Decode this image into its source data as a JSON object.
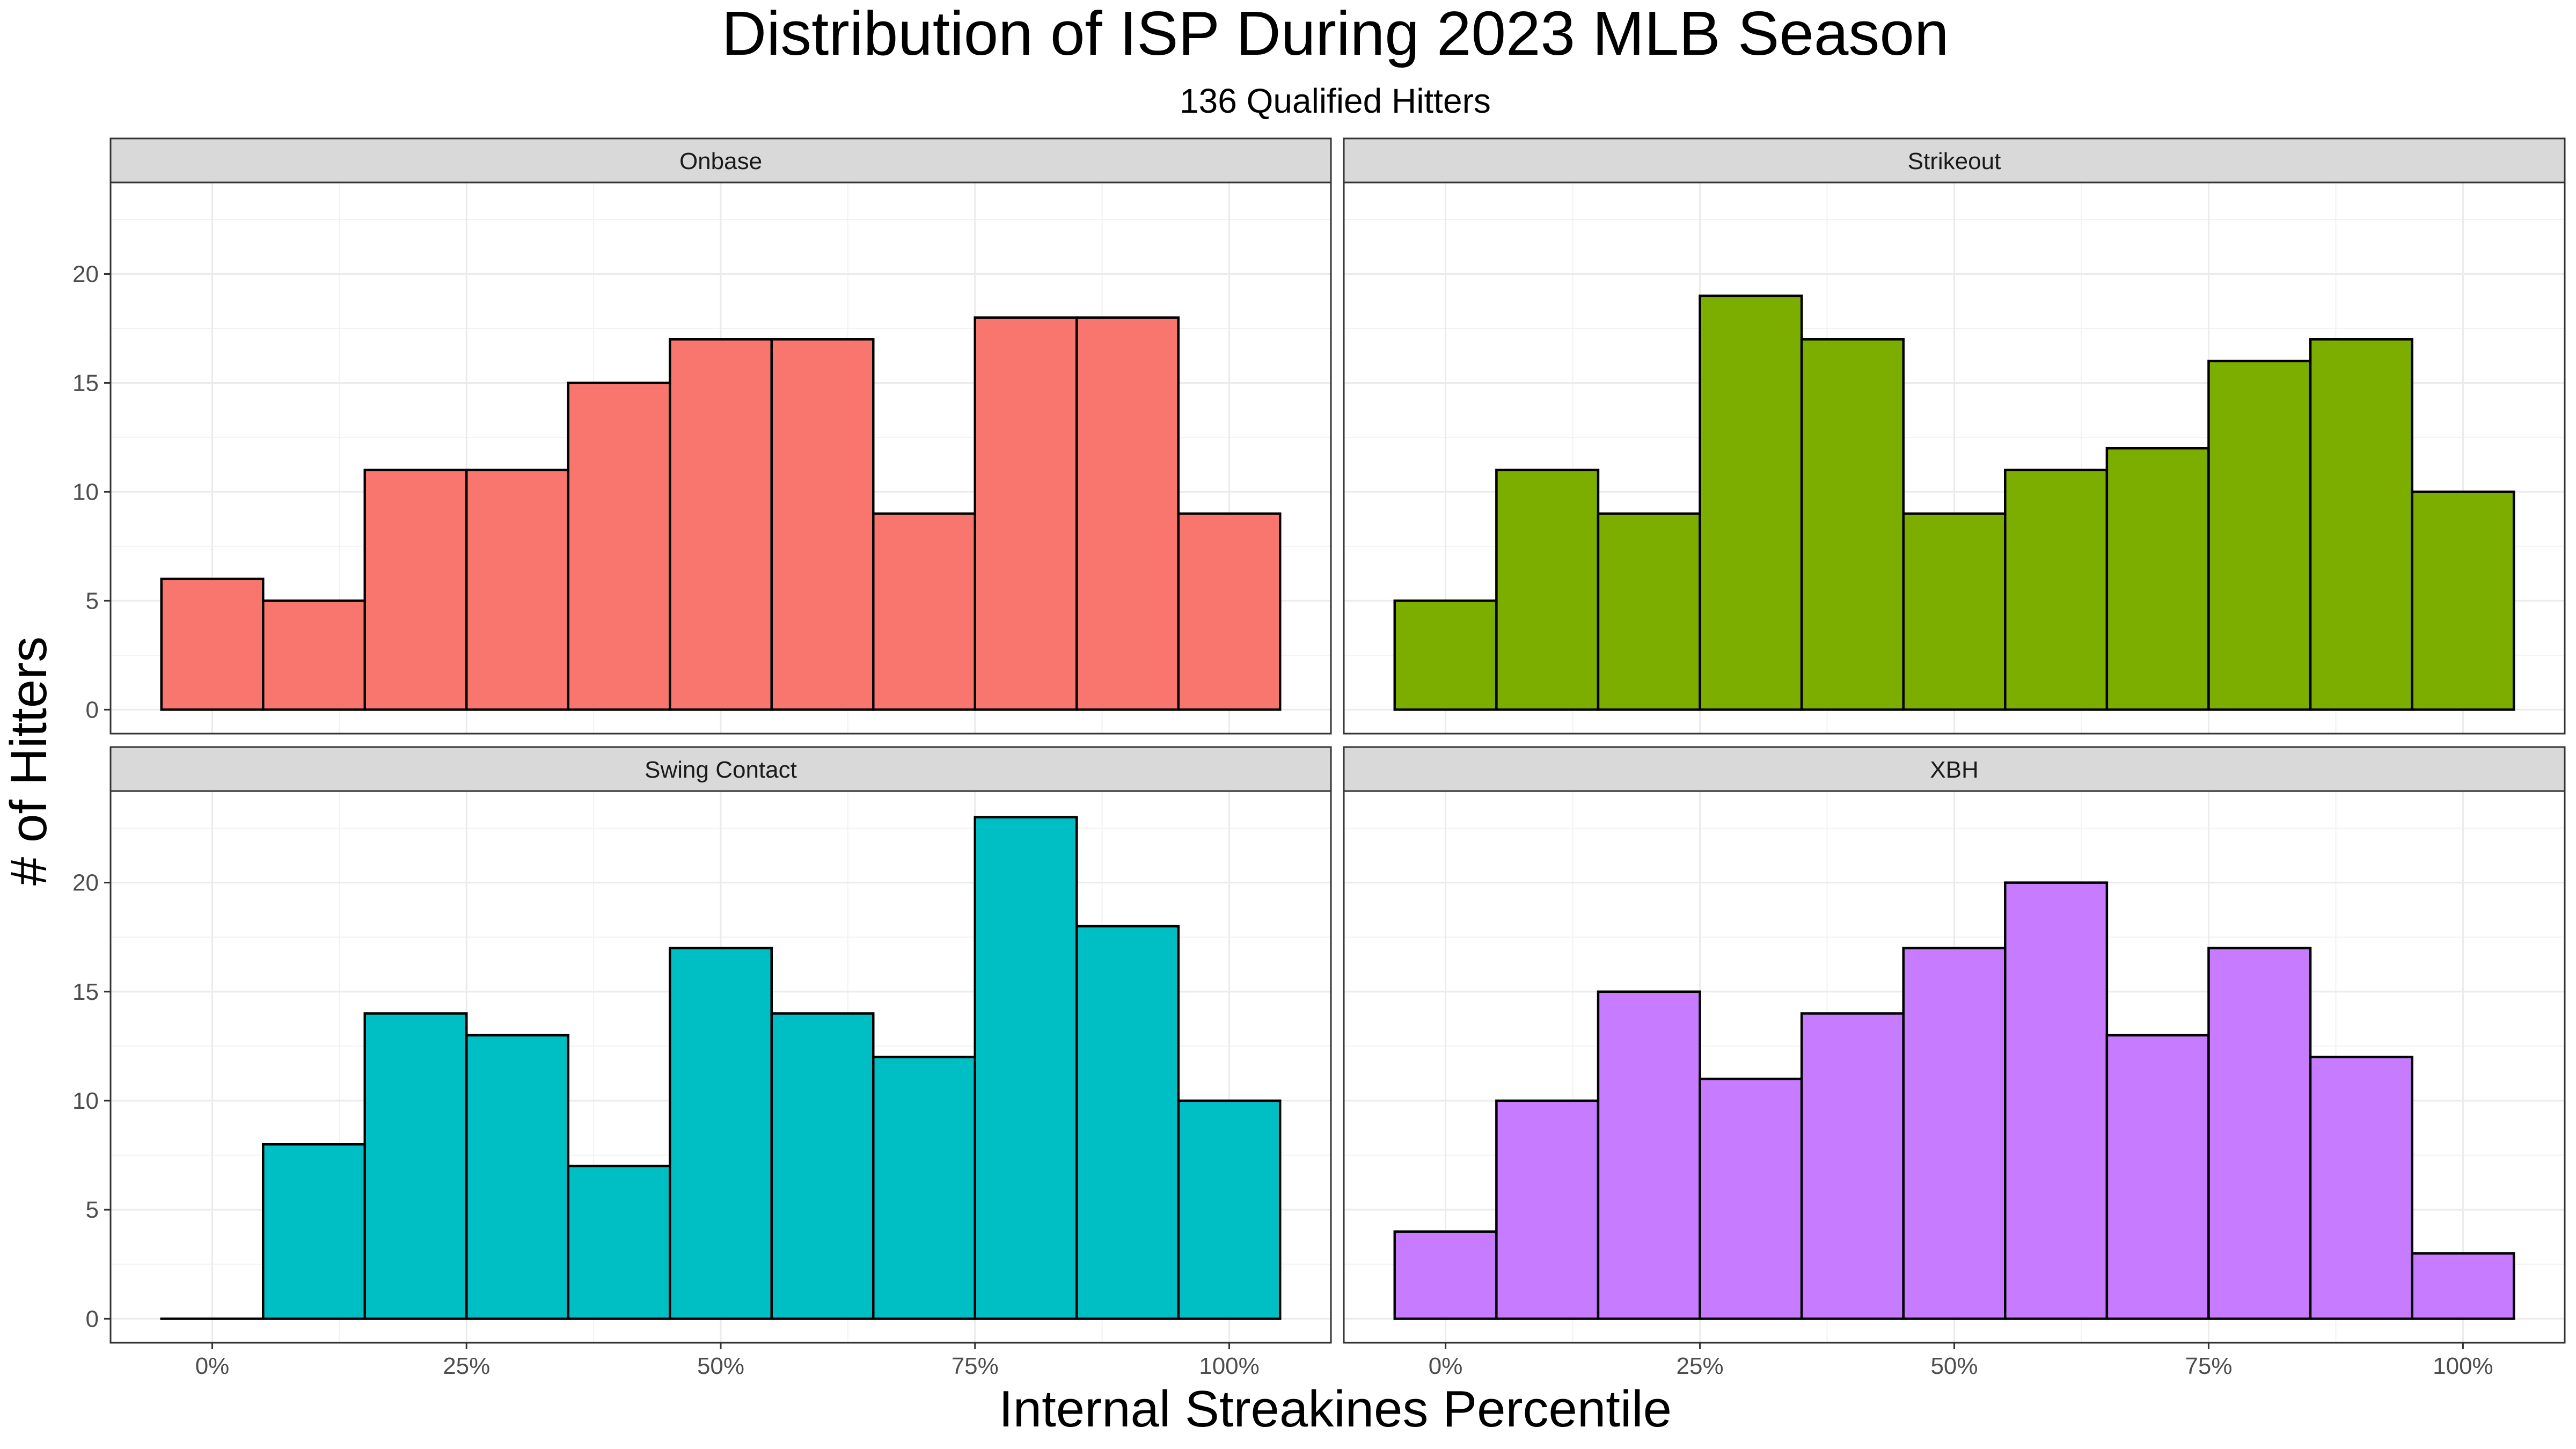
{
  "chart_data": {
    "type": "bar",
    "title": "Distribution of ISP During 2023 MLB Season",
    "subtitle": "136 Qualified Hitters",
    "xlabel": "Internal Streakines Percentile",
    "ylabel": "# of Hitters",
    "bin_width": 10,
    "bins": [
      0,
      10,
      20,
      30,
      40,
      50,
      60,
      70,
      80,
      90,
      100
    ],
    "xlim": [
      -10,
      110
    ],
    "ylim": [
      -1.1,
      24.2
    ],
    "x_ticks": [
      0,
      25,
      50,
      75,
      100
    ],
    "x_tick_labels": [
      "0%",
      "25%",
      "50%",
      "75%",
      "100%"
    ],
    "y_ticks": [
      0,
      5,
      10,
      15,
      20
    ],
    "y_tick_labels": [
      "0",
      "5",
      "10",
      "15",
      "20"
    ],
    "grid": true,
    "legend": "none",
    "panels": [
      {
        "name": "Onbase",
        "color": "#F8766D",
        "values": [
          6,
          5,
          11,
          11,
          15,
          17,
          17,
          9,
          18,
          18,
          9
        ]
      },
      {
        "name": "Strikeout",
        "color": "#7CAE00",
        "values": [
          5,
          11,
          9,
          19,
          17,
          9,
          11,
          12,
          16,
          17,
          10
        ]
      },
      {
        "name": "Swing Contact",
        "color": "#00BFC4",
        "values": [
          0,
          8,
          14,
          13,
          7,
          17,
          14,
          12,
          23,
          18,
          10
        ]
      },
      {
        "name": "XBH",
        "color": "#C77CFF",
        "values": [
          4,
          10,
          15,
          11,
          14,
          17,
          20,
          13,
          17,
          12,
          3
        ]
      }
    ]
  }
}
